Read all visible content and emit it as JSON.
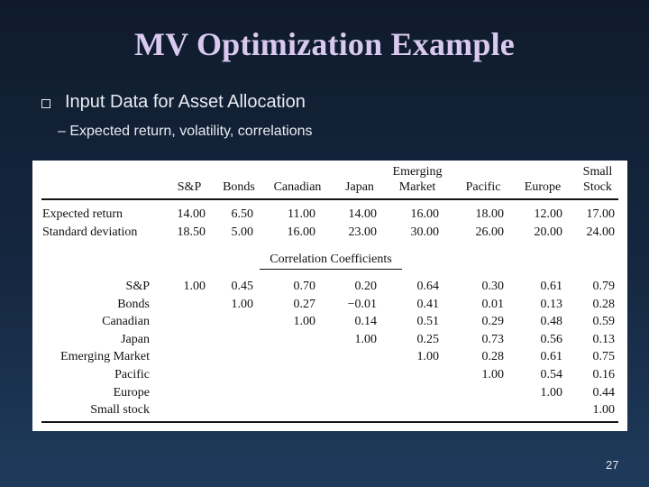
{
  "slide": {
    "title": "MV Optimization Example",
    "bullet": "Input Data for Asset Allocation",
    "sub_bullet": "– Expected return, volatility, correlations",
    "page_number": "27"
  },
  "table": {
    "headers": [
      {
        "top": "",
        "bottom": "S&P"
      },
      {
        "top": "",
        "bottom": "Bonds"
      },
      {
        "top": "",
        "bottom": "Canadian"
      },
      {
        "top": "",
        "bottom": "Japan"
      },
      {
        "top": "Emerging",
        "bottom": "Market"
      },
      {
        "top": "",
        "bottom": "Pacific"
      },
      {
        "top": "",
        "bottom": "Europe"
      },
      {
        "top": "Small",
        "bottom": "Stock"
      }
    ],
    "stats_rows": [
      {
        "label": "Expected return",
        "values": [
          "14.00",
          "6.50",
          "11.00",
          "14.00",
          "16.00",
          "18.00",
          "12.00",
          "17.00"
        ]
      },
      {
        "label": "Standard deviation",
        "values": [
          "18.50",
          "5.00",
          "16.00",
          "23.00",
          "30.00",
          "26.00",
          "20.00",
          "24.00"
        ]
      }
    ],
    "corr_title": "Correlation Coefficients",
    "corr_rows": [
      {
        "label": "S&P",
        "values": [
          "1.00",
          "0.45",
          "0.70",
          "0.20",
          "0.64",
          "0.30",
          "0.61",
          "0.79"
        ]
      },
      {
        "label": "Bonds",
        "values": [
          "",
          "1.00",
          "0.27",
          "−0.01",
          "0.41",
          "0.01",
          "0.13",
          "0.28"
        ]
      },
      {
        "label": "Canadian",
        "values": [
          "",
          "",
          "1.00",
          "0.14",
          "0.51",
          "0.29",
          "0.48",
          "0.59"
        ]
      },
      {
        "label": "Japan",
        "values": [
          "",
          "",
          "",
          "1.00",
          "0.25",
          "0.73",
          "0.56",
          "0.13"
        ]
      },
      {
        "label": "Emerging Market",
        "values": [
          "",
          "",
          "",
          "",
          "1.00",
          "0.28",
          "0.61",
          "0.75"
        ]
      },
      {
        "label": "Pacific",
        "values": [
          "",
          "",
          "",
          "",
          "",
          "1.00",
          "0.54",
          "0.16"
        ]
      },
      {
        "label": "Europe",
        "values": [
          "",
          "",
          "",
          "",
          "",
          "",
          "1.00",
          "0.44"
        ]
      },
      {
        "label": "Small stock",
        "values": [
          "",
          "",
          "",
          "",
          "",
          "",
          "",
          "1.00"
        ]
      }
    ]
  }
}
